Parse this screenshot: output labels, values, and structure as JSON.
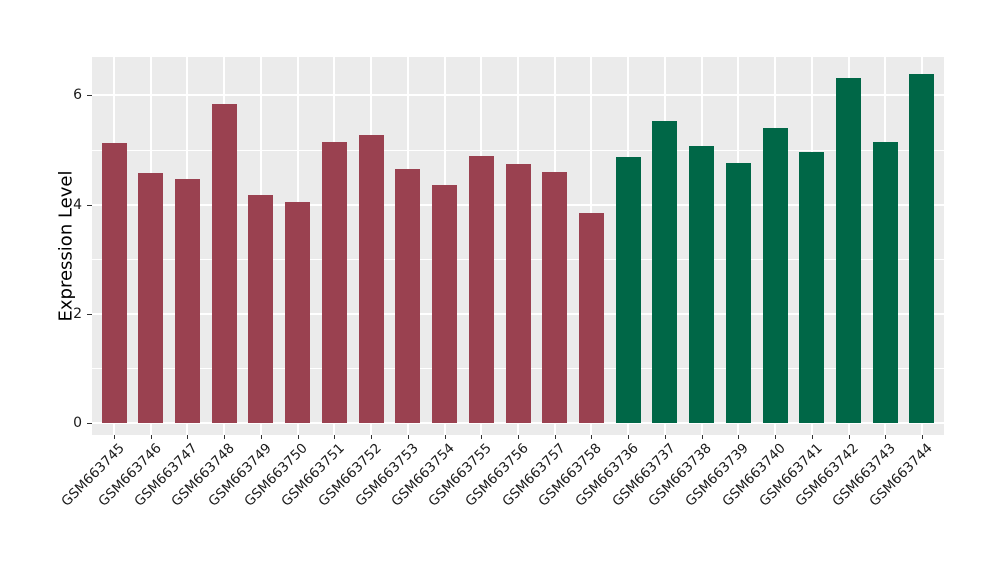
{
  "figure": {
    "background": "#ffffff",
    "panel_background": "#ebebeb",
    "gridline_color": "#ffffff",
    "tick_color": "#333333",
    "text_color": "#1a1a1a"
  },
  "chart_data": {
    "type": "bar",
    "title": "",
    "xlabel": "",
    "ylabel": "Expression Level",
    "ylim": [
      0,
      6.7
    ],
    "yticks": [
      0,
      2,
      4,
      6
    ],
    "minor_yticks": [
      1,
      3,
      5
    ],
    "grid": "horizontal major+minor, vertical major at each category",
    "legend": "none",
    "group_colors": {
      "left_group": "#9a4150",
      "right_group": "#006747"
    },
    "bars": [
      {
        "label": "GSM663745",
        "value": 5.12,
        "color": "#9a4150"
      },
      {
        "label": "GSM663746",
        "value": 4.57,
        "color": "#9a4150"
      },
      {
        "label": "GSM663747",
        "value": 4.46,
        "color": "#9a4150"
      },
      {
        "label": "GSM663748",
        "value": 5.84,
        "color": "#9a4150"
      },
      {
        "label": "GSM663749",
        "value": 4.18,
        "color": "#9a4150"
      },
      {
        "label": "GSM663750",
        "value": 4.04,
        "color": "#9a4150"
      },
      {
        "label": "GSM663751",
        "value": 5.14,
        "color": "#9a4150"
      },
      {
        "label": "GSM663752",
        "value": 5.27,
        "color": "#9a4150"
      },
      {
        "label": "GSM663753",
        "value": 4.65,
        "color": "#9a4150"
      },
      {
        "label": "GSM663754",
        "value": 4.36,
        "color": "#9a4150"
      },
      {
        "label": "GSM663755",
        "value": 4.89,
        "color": "#9a4150"
      },
      {
        "label": "GSM663756",
        "value": 4.74,
        "color": "#9a4150"
      },
      {
        "label": "GSM663757",
        "value": 4.59,
        "color": "#9a4150"
      },
      {
        "label": "GSM663758",
        "value": 3.84,
        "color": "#9a4150"
      },
      {
        "label": "GSM663736",
        "value": 4.88,
        "color": "#006747"
      },
      {
        "label": "GSM663737",
        "value": 5.53,
        "color": "#006747"
      },
      {
        "label": "GSM663738",
        "value": 5.07,
        "color": "#006747"
      },
      {
        "label": "GSM663739",
        "value": 4.77,
        "color": "#006747"
      },
      {
        "label": "GSM663740",
        "value": 5.4,
        "color": "#006747"
      },
      {
        "label": "GSM663741",
        "value": 4.96,
        "color": "#006747"
      },
      {
        "label": "GSM663742",
        "value": 6.31,
        "color": "#006747"
      },
      {
        "label": "GSM663743",
        "value": 5.15,
        "color": "#006747"
      },
      {
        "label": "GSM663744",
        "value": 6.39,
        "color": "#006747"
      }
    ]
  }
}
